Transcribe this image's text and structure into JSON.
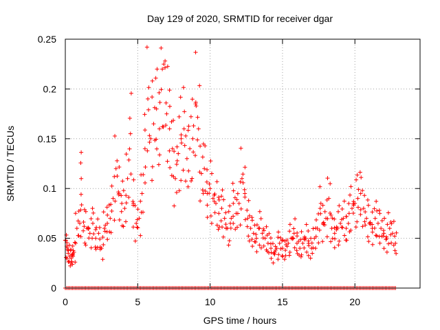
{
  "chart_data": {
    "type": "scatter",
    "title": "Day 129 of 2020, SRMTID for receiver dgar",
    "xlabel": "GPS time / hours",
    "ylabel": "SRMTID / TECUs",
    "xlim": [
      0,
      24.5
    ],
    "ylim": [
      0,
      0.25
    ],
    "xticks": [
      0,
      5,
      10,
      15,
      20
    ],
    "xtick_labels": [
      "0",
      "5",
      "10",
      "15",
      "20"
    ],
    "yticks": [
      0,
      0.05,
      0.1,
      0.15,
      0.2,
      0.25
    ],
    "ytick_labels": [
      "0",
      "0.05",
      "0.1",
      "0.15",
      "0.2",
      "0.25"
    ],
    "grid": true,
    "marker": "+",
    "marker_color": "#ff0000",
    "zero_line_x_range": [
      0,
      22.8
    ],
    "series": [
      {
        "name": "SRMTID",
        "x": [
          0.0,
          0.1,
          0.2,
          0.3,
          0.4,
          0.5,
          0.6,
          0.8,
          1.0,
          1.1,
          1.3,
          1.5,
          1.7,
          1.9,
          2.1,
          2.3,
          2.5,
          2.7,
          2.9,
          3.1,
          3.3,
          3.5,
          3.7,
          3.9,
          4.1,
          4.3,
          4.5,
          4.7,
          4.9,
          5.1,
          5.3,
          5.5,
          5.7,
          5.9,
          6.1,
          6.3,
          6.5,
          6.7,
          6.8,
          7.0,
          7.2,
          7.4,
          7.6,
          7.8,
          8.0,
          8.2,
          8.4,
          8.6,
          8.8,
          9.0,
          9.2,
          9.4,
          9.6,
          9.8,
          10.0,
          10.2,
          10.4,
          10.6,
          10.8,
          11.0,
          11.2,
          11.4,
          11.6,
          11.8,
          12.0,
          12.2,
          12.4,
          12.6,
          12.8,
          13.0,
          13.2,
          13.4,
          13.6,
          13.8,
          14.0,
          14.2,
          14.4,
          14.6,
          14.8,
          15.0,
          15.2,
          15.4,
          15.6,
          15.8,
          16.0,
          16.2,
          16.4,
          16.6,
          16.8,
          17.0,
          17.2,
          17.4,
          17.6,
          17.8,
          18.0,
          18.2,
          18.4,
          18.6,
          18.8,
          19.0,
          19.2,
          19.4,
          19.6,
          19.8,
          20.0,
          20.2,
          20.4,
          20.6,
          20.8,
          21.0,
          21.2,
          21.4,
          21.6,
          21.8,
          22.0,
          22.2,
          22.4,
          22.6,
          22.8
        ],
        "y": [
          0.048,
          0.042,
          0.035,
          0.032,
          0.03,
          0.033,
          0.036,
          0.06,
          0.065,
          0.11,
          0.062,
          0.06,
          0.055,
          0.065,
          0.05,
          0.055,
          0.04,
          0.06,
          0.065,
          0.07,
          0.09,
          0.12,
          0.095,
          0.085,
          0.08,
          0.11,
          0.155,
          0.085,
          0.065,
          0.07,
          0.095,
          0.14,
          0.19,
          0.15,
          0.165,
          0.18,
          0.16,
          0.22,
          0.225,
          0.175,
          0.16,
          0.14,
          0.11,
          0.135,
          0.15,
          0.16,
          0.13,
          0.14,
          0.15,
          0.185,
          0.16,
          0.115,
          0.12,
          0.095,
          0.1,
          0.09,
          0.085,
          0.075,
          0.08,
          0.07,
          0.06,
          0.065,
          0.085,
          0.075,
          0.085,
          0.11,
          0.095,
          0.07,
          0.06,
          0.055,
          0.05,
          0.06,
          0.055,
          0.05,
          0.045,
          0.04,
          0.035,
          0.04,
          0.045,
          0.04,
          0.038,
          0.045,
          0.05,
          0.055,
          0.045,
          0.04,
          0.045,
          0.05,
          0.045,
          0.04,
          0.05,
          0.06,
          0.08,
          0.065,
          0.07,
          0.09,
          0.06,
          0.055,
          0.06,
          0.065,
          0.07,
          0.06,
          0.075,
          0.08,
          0.085,
          0.09,
          0.095,
          0.08,
          0.07,
          0.065,
          0.06,
          0.07,
          0.065,
          0.06,
          0.055,
          0.05,
          0.06,
          0.055,
          0.045
        ]
      }
    ]
  }
}
